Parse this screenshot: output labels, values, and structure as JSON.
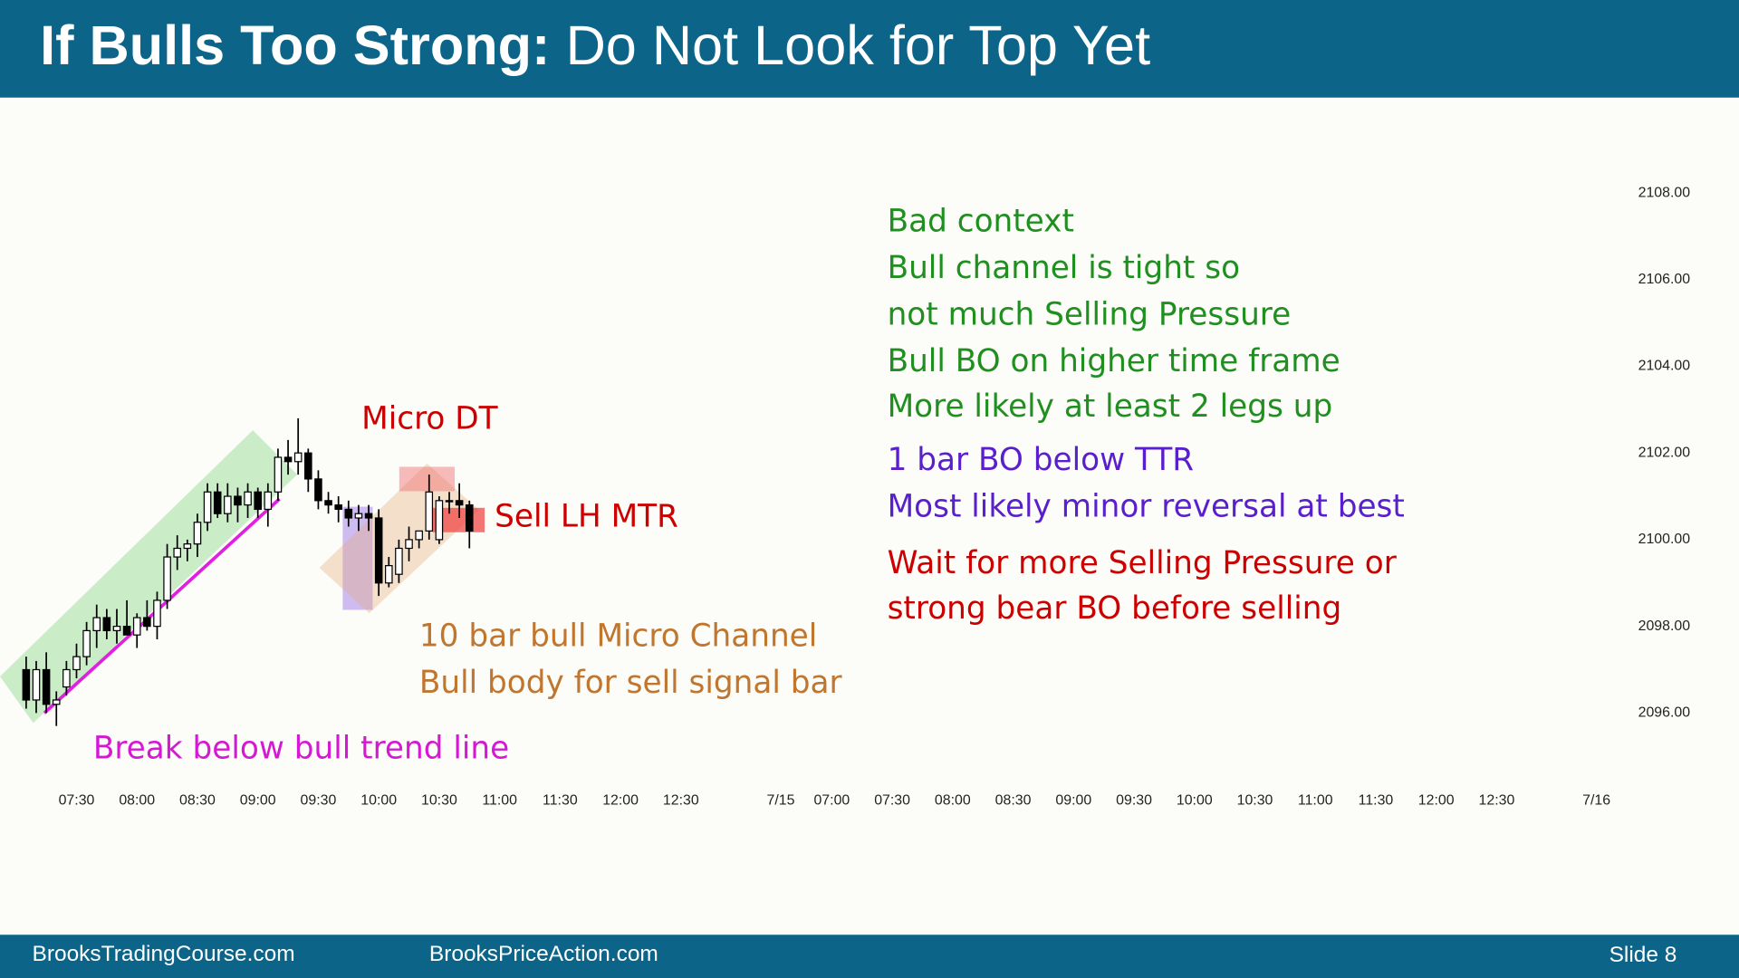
{
  "header": {
    "title_bold": "If Bulls Too Strong:",
    "title_rest": "Do Not Look for Top Yet"
  },
  "footer": {
    "left": "BrooksTradingCourse.com",
    "center": "BrooksPriceAction.com",
    "slide": "Slide 8"
  },
  "chart_data": {
    "type": "candlestick",
    "x": [
      "07:05",
      "07:10",
      "07:15",
      "07:20",
      "07:25",
      "07:30",
      "07:35",
      "07:40",
      "07:45",
      "07:50",
      "07:55",
      "08:00",
      "08:05",
      "08:10",
      "08:15",
      "08:20",
      "08:25",
      "08:30",
      "08:35",
      "08:40",
      "08:45",
      "08:50",
      "08:55",
      "09:00",
      "09:05",
      "09:10",
      "09:15",
      "09:20",
      "09:25",
      "09:30",
      "09:35",
      "09:40",
      "09:45",
      "09:50",
      "09:55",
      "10:00",
      "10:05",
      "10:10",
      "10:15",
      "10:20",
      "10:25",
      "10:30",
      "10:35",
      "10:40",
      "10:45"
    ],
    "open": [
      2097.0,
      2096.3,
      2097.0,
      2096.2,
      2096.6,
      2097.0,
      2097.3,
      2097.9,
      2098.2,
      2097.9,
      2098.0,
      2097.8,
      2098.2,
      2098.0,
      2098.6,
      2099.6,
      2099.8,
      2099.9,
      2100.4,
      2101.1,
      2100.6,
      2101.0,
      2100.8,
      2101.1,
      2100.7,
      2101.1,
      2101.9,
      2101.8,
      2102.0,
      2101.4,
      2100.9,
      2100.8,
      2100.7,
      2100.5,
      2100.6,
      2100.5,
      2099.0,
      2099.2,
      2099.8,
      2100.0,
      2100.2,
      2100.0,
      2100.9,
      2100.9,
      2100.8
    ],
    "high": [
      2097.3,
      2097.2,
      2097.4,
      2096.5,
      2097.2,
      2097.6,
      2098.1,
      2098.5,
      2098.4,
      2098.4,
      2098.6,
      2098.3,
      2098.6,
      2098.8,
      2099.9,
      2100.1,
      2100.0,
      2100.6,
      2101.3,
      2101.3,
      2101.3,
      2101.2,
      2101.3,
      2101.2,
      2101.3,
      2102.1,
      2102.3,
      2102.8,
      2102.1,
      2101.6,
      2101.1,
      2101.0,
      2100.9,
      2100.8,
      2100.8,
      2100.7,
      2099.6,
      2100.0,
      2100.3,
      2100.2,
      2101.5,
      2101.0,
      2101.1,
      2101.3,
      2100.9
    ],
    "low": [
      2096.1,
      2096.0,
      2096.0,
      2095.7,
      2096.4,
      2096.8,
      2097.1,
      2097.5,
      2097.7,
      2097.6,
      2097.8,
      2097.5,
      2097.9,
      2097.7,
      2098.4,
      2099.3,
      2099.5,
      2099.6,
      2100.2,
      2100.5,
      2100.4,
      2100.4,
      2100.5,
      2100.5,
      2100.3,
      2100.9,
      2101.5,
      2101.5,
      2101.1,
      2100.7,
      2100.6,
      2100.4,
      2100.3,
      2100.2,
      2100.2,
      2098.7,
      2098.9,
      2099.0,
      2099.5,
      2099.8,
      2100.0,
      2099.9,
      2100.6,
      2100.5,
      2099.8
    ],
    "close": [
      2096.3,
      2097.0,
      2096.2,
      2096.3,
      2097.0,
      2097.3,
      2097.9,
      2098.2,
      2097.9,
      2098.0,
      2097.8,
      2098.2,
      2098.0,
      2098.6,
      2099.6,
      2099.8,
      2099.9,
      2100.4,
      2101.1,
      2100.6,
      2101.0,
      2100.8,
      2101.1,
      2100.7,
      2101.1,
      2101.9,
      2101.8,
      2102.0,
      2101.4,
      2100.9,
      2100.8,
      2100.7,
      2100.5,
      2100.6,
      2100.5,
      2099.0,
      2099.4,
      2099.8,
      2100.0,
      2100.2,
      2101.1,
      2100.9,
      2100.9,
      2100.8,
      2100.2
    ],
    "up_color": "#ffffff",
    "down_color": "#000000",
    "ylim": [
      2094.5,
      2110
    ],
    "yticks": [
      {
        "value": 2108,
        "label": "2108.00"
      },
      {
        "value": 2106,
        "label": "2106.00"
      },
      {
        "value": 2104,
        "label": "2104.00"
      },
      {
        "value": 2102,
        "label": "2102.00"
      },
      {
        "value": 2100,
        "label": "2100.00"
      },
      {
        "value": 2098,
        "label": "2098.00"
      },
      {
        "value": 2096,
        "label": "2096.00"
      }
    ],
    "xticks": [
      "07:30",
      "08:00",
      "08:30",
      "09:00",
      "09:30",
      "10:00",
      "10:30",
      "11:00",
      "11:30",
      "12:00",
      "12:30",
      "7/15",
      "07:00",
      "07:30",
      "08:00",
      "08:30",
      "09:00",
      "09:30",
      "10:00",
      "10:30",
      "11:00",
      "11:30",
      "12:00",
      "12:30",
      "7/16"
    ],
    "annotations": [
      {
        "text": "Micro DT",
        "color": "#cc0000"
      },
      {
        "text": "Sell LH MTR",
        "color": "#cc0000"
      },
      {
        "text": "10 bar bull Micro Channel",
        "color": "#c0762e"
      },
      {
        "text": "Bull body for sell signal bar",
        "color": "#c0762e"
      },
      {
        "text": "Break below bull trend line",
        "color": "#d418d4"
      },
      {
        "text": "Bad context",
        "color": "#1f8f1f"
      },
      {
        "text": "Bull channel is tight so",
        "color": "#1f8f1f"
      },
      {
        "text": "not much Selling Pressure",
        "color": "#1f8f1f"
      },
      {
        "text": "Bull BO on higher time frame",
        "color": "#1f8f1f"
      },
      {
        "text": "More likely at least 2 legs up",
        "color": "#1f8f1f"
      },
      {
        "text": "1 bar BO below TTR",
        "color": "#5a1fcc"
      },
      {
        "text": "Most likely minor reversal at best",
        "color": "#5a1fcc"
      },
      {
        "text": "Wait for more Selling Pressure or",
        "color": "#cc0000"
      },
      {
        "text": "strong bear BO before selling",
        "color": "#cc0000"
      }
    ]
  }
}
